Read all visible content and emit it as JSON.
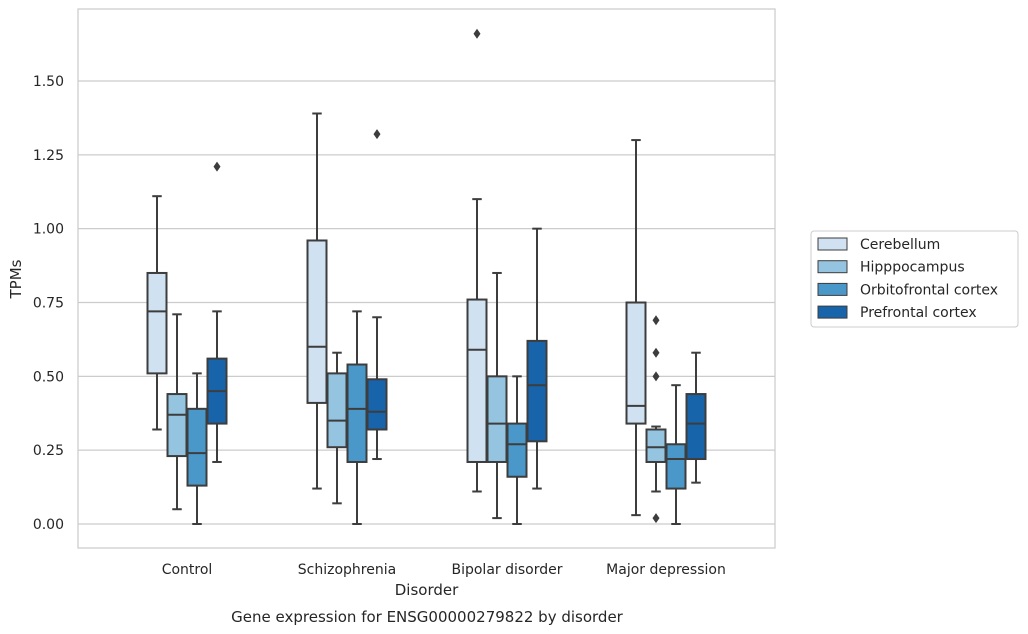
{
  "chart_data": {
    "type": "box",
    "title": "",
    "caption": "Gene expression for ENSG00000279822 by disorder",
    "xlabel": "Disorder",
    "ylabel": "TPMs",
    "ylim": [
      -0.08,
      1.75
    ],
    "yticks": [
      0.0,
      0.25,
      0.5,
      0.75,
      1.0,
      1.25,
      1.5
    ],
    "ytick_labels": [
      "0.00",
      "0.25",
      "0.50",
      "0.75",
      "1.00",
      "1.25",
      "1.50"
    ],
    "grid": "horizontal",
    "legend_position": "right",
    "categories": [
      "Control",
      "Schizophrenia",
      "Bipolar disorder",
      "Major depression"
    ],
    "series": [
      {
        "name": "Cerebellum",
        "color": "#d0e1f2",
        "boxes": [
          {
            "whisker_low": 0.32,
            "q1": 0.51,
            "median": 0.72,
            "q3": 0.85,
            "whisker_high": 1.11,
            "outliers": []
          },
          {
            "whisker_low": 0.12,
            "q1": 0.41,
            "median": 0.6,
            "q3": 0.96,
            "whisker_high": 1.39,
            "outliers": []
          },
          {
            "whisker_low": 0.11,
            "q1": 0.21,
            "median": 0.59,
            "q3": 0.76,
            "whisker_high": 1.1,
            "outliers": [
              1.66
            ]
          },
          {
            "whisker_low": 0.03,
            "q1": 0.34,
            "median": 0.4,
            "q3": 0.75,
            "whisker_high": 1.3,
            "outliers": []
          }
        ]
      },
      {
        "name": "Hipppocampus",
        "color": "#94c4df",
        "boxes": [
          {
            "whisker_low": 0.05,
            "q1": 0.23,
            "median": 0.37,
            "q3": 0.44,
            "whisker_high": 0.71,
            "outliers": []
          },
          {
            "whisker_low": 0.07,
            "q1": 0.26,
            "median": 0.35,
            "q3": 0.51,
            "whisker_high": 0.58,
            "outliers": []
          },
          {
            "whisker_low": 0.02,
            "q1": 0.21,
            "median": 0.34,
            "q3": 0.5,
            "whisker_high": 0.85,
            "outliers": []
          },
          {
            "whisker_low": 0.11,
            "q1": 0.21,
            "median": 0.26,
            "q3": 0.32,
            "whisker_high": 0.33,
            "outliers": [
              0.69,
              0.58,
              0.5,
              0.02
            ]
          }
        ]
      },
      {
        "name": "Orbitofrontal cortex",
        "color": "#4a98c9",
        "boxes": [
          {
            "whisker_low": 0.0,
            "q1": 0.13,
            "median": 0.24,
            "q3": 0.39,
            "whisker_high": 0.51,
            "outliers": []
          },
          {
            "whisker_low": 0.0,
            "q1": 0.21,
            "median": 0.39,
            "q3": 0.54,
            "whisker_high": 0.72,
            "outliers": []
          },
          {
            "whisker_low": 0.0,
            "q1": 0.16,
            "median": 0.27,
            "q3": 0.34,
            "whisker_high": 0.5,
            "outliers": []
          },
          {
            "whisker_low": 0.0,
            "q1": 0.12,
            "median": 0.22,
            "q3": 0.27,
            "whisker_high": 0.47,
            "outliers": []
          }
        ]
      },
      {
        "name": "Prefrontal cortex",
        "color": "#1764ab",
        "boxes": [
          {
            "whisker_low": 0.21,
            "q1": 0.34,
            "median": 0.45,
            "q3": 0.56,
            "whisker_high": 0.72,
            "outliers": [
              1.21
            ]
          },
          {
            "whisker_low": 0.22,
            "q1": 0.32,
            "median": 0.38,
            "q3": 0.49,
            "whisker_high": 0.7,
            "outliers": [
              1.32
            ]
          },
          {
            "whisker_low": 0.12,
            "q1": 0.28,
            "median": 0.47,
            "q3": 0.62,
            "whisker_high": 1.0,
            "outliers": []
          },
          {
            "whisker_low": 0.14,
            "q1": 0.22,
            "median": 0.34,
            "q3": 0.44,
            "whisker_high": 0.58,
            "outliers": []
          }
        ]
      }
    ]
  }
}
